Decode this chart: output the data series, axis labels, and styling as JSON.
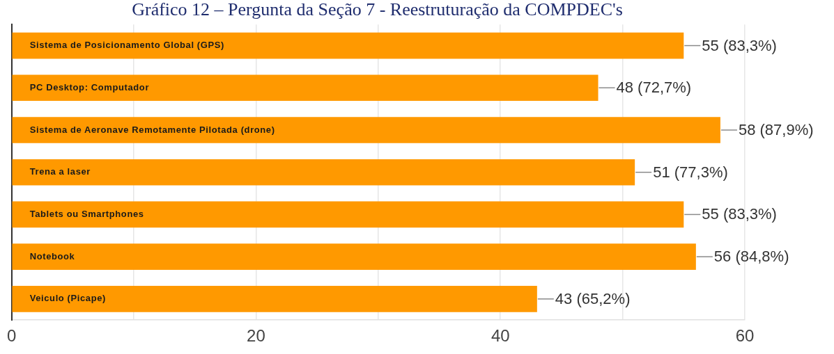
{
  "chart_data": {
    "type": "bar",
    "orientation": "horizontal",
    "title": "Gráfico 12 – Pergunta da Seção 7 - Reestruturação da COMPDEC's",
    "categories": [
      "Sistema de Posicionamento Global (GPS)",
      "PC Desktop: Computador",
      "Sistema de Aeronave Remotamente Pilotada (drone)",
      "Trena a laser",
      "Tablets ou Smartphones",
      "Notebook",
      "Veiculo (Picape)"
    ],
    "values": [
      55,
      48,
      58,
      51,
      55,
      56,
      43
    ],
    "color": "#ff9900",
    "value_labels": [
      "55 (83,3%)",
      "48 (72,7%)",
      "58 (87,9%)",
      "51 (77,3%)",
      "55 (83,3%)",
      "56 (84,8%)",
      "43 (65,2%)"
    ],
    "xlim": [
      0,
      60
    ],
    "xticks": [
      0,
      {
        "value": 10,
        "label": null
      },
      20,
      {
        "value": 30,
        "label": null
      },
      40,
      {
        "value": 50,
        "label": null
      },
      60
    ],
    "grid": "x"
  }
}
